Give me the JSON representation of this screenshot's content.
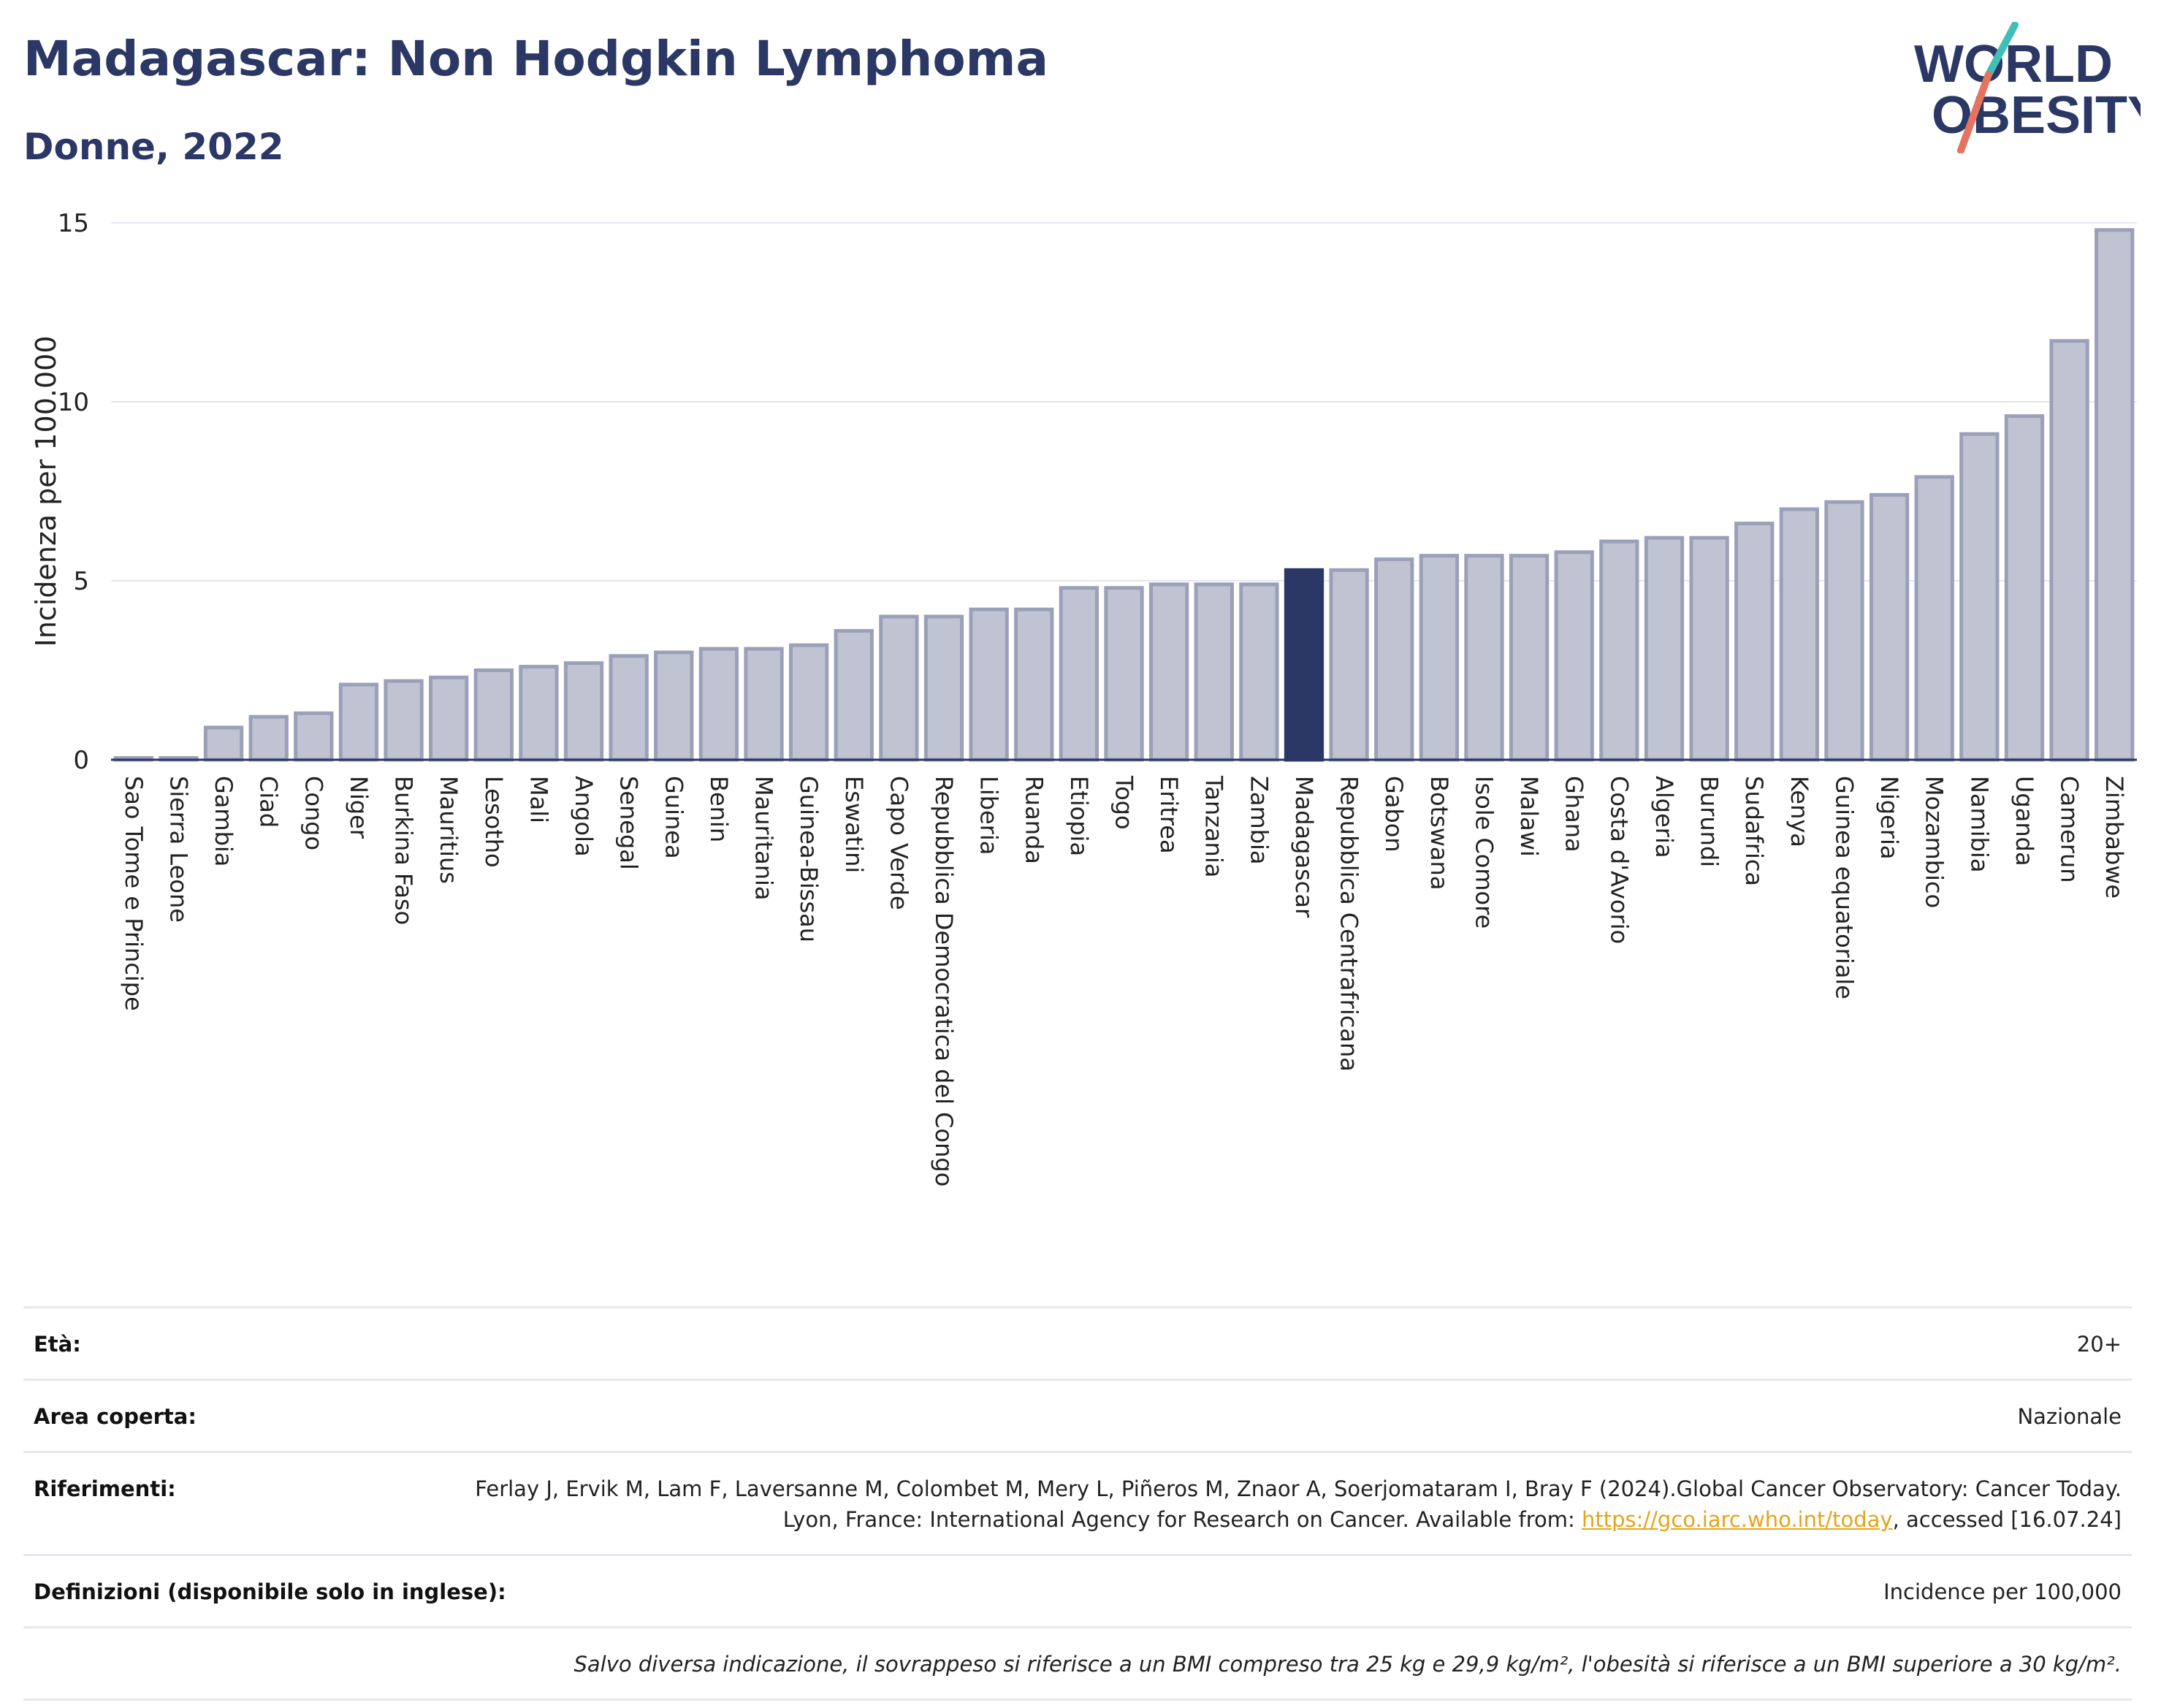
{
  "header": {
    "title": "Madagascar: Non Hodgkin Lymphoma",
    "subtitle": "Donne, 2022",
    "logo_line1": "WORLD",
    "logo_line2": "OBESITY"
  },
  "colors": {
    "bar_default": "#c0c4d2",
    "bar_default_stroke": "#9aa0b8",
    "bar_highlight": "#2b3765",
    "text_primary": "#2b3765",
    "link": "#e6a417",
    "logo_slash_top": "#3fbfb8",
    "logo_slash_bottom": "#e6735f"
  },
  "chart_data": {
    "type": "bar",
    "title": "",
    "xlabel": "",
    "ylabel": "Incidenza per 100.000",
    "ylim": [
      0,
      15
    ],
    "yticks": [
      0,
      5,
      10,
      15
    ],
    "grid": true,
    "highlight": "Madagascar",
    "categories": [
      "Sao Tome e Principe",
      "Sierra Leone",
      "Gambia",
      "Ciad",
      "Congo",
      "Niger",
      "Burkina Faso",
      "Mauritius",
      "Lesotho",
      "Mali",
      "Angola",
      "Senegal",
      "Guinea",
      "Benin",
      "Mauritania",
      "Guinea-Bissau",
      "Eswatini",
      "Capo Verde",
      "Repubblica Democratica del Congo",
      "Liberia",
      "Ruanda",
      "Etiopia",
      "Togo",
      "Eritrea",
      "Tanzania",
      "Zambia",
      "Madagascar",
      "Repubblica Centrafricana",
      "Gabon",
      "Botswana",
      "Isole Comore",
      "Malawi",
      "Ghana",
      "Costa d'Avorio",
      "Algeria",
      "Burundi",
      "Sudafrica",
      "Kenya",
      "Guinea equatoriale",
      "Nigeria",
      "Mozambico",
      "Namibia",
      "Uganda",
      "Camerun",
      "Zimbabwe"
    ],
    "values": [
      0.05,
      0.05,
      0.9,
      1.2,
      1.3,
      2.1,
      2.2,
      2.3,
      2.5,
      2.6,
      2.7,
      2.9,
      3.0,
      3.1,
      3.1,
      3.2,
      3.6,
      4.0,
      4.0,
      4.2,
      4.2,
      4.8,
      4.8,
      4.9,
      4.9,
      4.9,
      5.3,
      5.3,
      5.6,
      5.7,
      5.7,
      5.7,
      5.8,
      6.1,
      6.2,
      6.2,
      6.6,
      7.0,
      7.2,
      7.4,
      7.9,
      9.1,
      9.6,
      11.7,
      14.8
    ]
  },
  "info": {
    "age_label": "Età:",
    "age_value": "20+",
    "area_label": "Area coperta:",
    "area_value": "Nazionale",
    "refs_label": "Riferimenti:",
    "refs_text_1": "Ferlay J, Ervik M, Lam F, Laversanne M, Colombet M, Mery L, Piñeros M, Znaor A, Soerjomataram I, Bray F (2024).Global Cancer Observatory: Cancer Today. Lyon, France: International Agency for Research on Cancer. Available from: ",
    "refs_link": "https://gco.iarc.who.int/today",
    "refs_text_2": ", accessed [16.07.24]",
    "defs_label": "Definizioni (disponibile solo in inglese):",
    "defs_value": "Incidence per 100,000",
    "note": "Salvo diversa indicazione, il sovrappeso si riferisce a un BMI compreso tra 25 kg e 29,9 kg/m², l'obesità si riferisce a un BMI superiore a 30 kg/m²."
  }
}
